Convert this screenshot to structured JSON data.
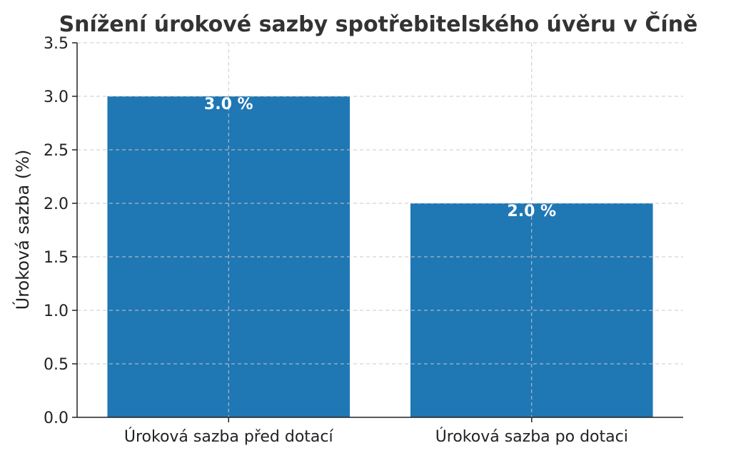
{
  "chart_data": {
    "type": "bar",
    "title": "Snížení úrokové sazby spotřebitelského úvěru v Číně",
    "xlabel": "",
    "ylabel": "Úroková sazba (%)",
    "categories": [
      "Úroková sazba před dotací",
      "Úroková sazba po dotaci"
    ],
    "values": [
      3.0,
      2.0
    ],
    "data_labels": [
      "3.0 %",
      "2.0 %"
    ],
    "ylim": [
      0,
      3.5
    ],
    "yticks": [
      "0.0",
      "0.5",
      "1.0",
      "1.5",
      "2.0",
      "2.5",
      "3.0",
      "3.5"
    ],
    "grid": true,
    "bar_color": "#1f77b4",
    "label_color": "#ffffff",
    "title_color": "#333333"
  }
}
